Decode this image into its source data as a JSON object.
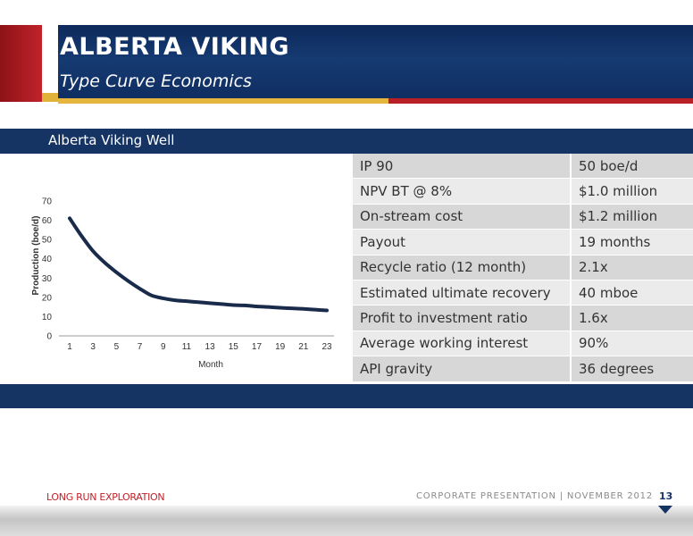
{
  "header": {
    "title": "ALBERTA VIKING",
    "subtitle": "Type Curve Economics"
  },
  "section": {
    "title": "Alberta Viking Well"
  },
  "table": {
    "rows": [
      {
        "label": "IP 90",
        "value": "50 boe/d"
      },
      {
        "label": "NPV BT @ 8%",
        "value": "$1.0 million"
      },
      {
        "label": "On-stream cost",
        "value": "$1.2 million"
      },
      {
        "label": "Payout",
        "value": "19 months"
      },
      {
        "label": "Recycle ratio (12 month)",
        "value": "2.1x"
      },
      {
        "label": "Estimated ultimate recovery",
        "value": "40 mboe"
      },
      {
        "label": "Profit to investment ratio",
        "value": "1.6x"
      },
      {
        "label": "Average  working interest",
        "value": "90%"
      },
      {
        "label": "API gravity",
        "value": "36 degrees"
      }
    ]
  },
  "chart_data": {
    "type": "line",
    "title": "",
    "xlabel": "Month",
    "ylabel": "Production (boe/d)",
    "ylim": [
      0,
      70
    ],
    "yticks": [
      "0",
      "10",
      "20",
      "30",
      "40",
      "50",
      "60",
      "70"
    ],
    "xlim": [
      1,
      23
    ],
    "xticks": [
      "1",
      "3",
      "5",
      "7",
      "9",
      "11",
      "13",
      "15",
      "17",
      "19",
      "21",
      "23"
    ],
    "grid": false,
    "legend": "none",
    "color": "#1a2a4a",
    "series": [
      {
        "x": [
          1,
          2,
          3,
          4,
          5,
          6,
          7,
          8,
          9,
          10,
          11,
          12,
          13,
          14,
          15,
          16,
          17,
          18,
          19,
          20,
          21,
          22,
          23
        ],
        "values": [
          61,
          52,
          44,
          38,
          33,
          28.5,
          24.5,
          21,
          19.5,
          18.5,
          18,
          17.5,
          17,
          16.5,
          16,
          15.8,
          15.3,
          15,
          14.6,
          14.3,
          14,
          13.6,
          13.2
        ]
      }
    ]
  },
  "footer": {
    "brand": "LONG RUN EXPLORATION",
    "presentation": "CORPORATE PRESENTATION | NOVEMBER 2012",
    "page": "13"
  }
}
